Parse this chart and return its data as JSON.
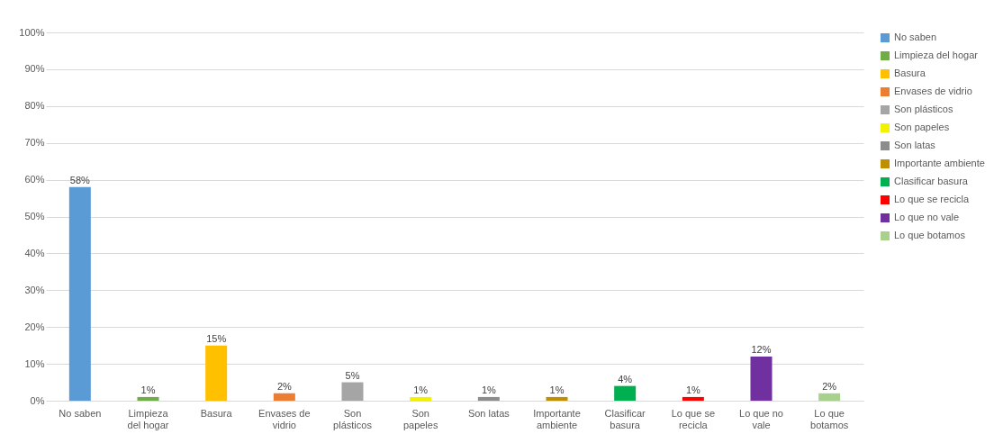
{
  "chart_data": {
    "type": "bar",
    "categories": [
      "No saben",
      "Limpieza del hogar",
      "Basura",
      "Envases de vidrio",
      "Son plásticos",
      "Son papeles",
      "Son latas",
      "Importante ambiente",
      "Clasificar basura",
      "Lo que se recicla",
      "Lo que no vale",
      "Lo que botamos"
    ],
    "series": [
      {
        "name": "No saben",
        "color": "#5b9bd5",
        "values": [
          58,
          null,
          null,
          null,
          null,
          null,
          null,
          null,
          null,
          null,
          null,
          null
        ],
        "value_labels": [
          "58%",
          null,
          null,
          null,
          null,
          null,
          null,
          null,
          null,
          null,
          null,
          null
        ]
      },
      {
        "name": "Limpieza del hogar",
        "color": "#70ad47",
        "values": [
          null,
          1,
          null,
          null,
          null,
          null,
          null,
          null,
          null,
          null,
          null,
          null
        ],
        "value_labels": [
          null,
          "1%",
          null,
          null,
          null,
          null,
          null,
          null,
          null,
          null,
          null,
          null
        ]
      },
      {
        "name": "Basura",
        "color": "#ffc000",
        "values": [
          null,
          null,
          15,
          null,
          null,
          null,
          null,
          null,
          null,
          null,
          null,
          null
        ],
        "value_labels": [
          null,
          null,
          "15%",
          null,
          null,
          null,
          null,
          null,
          null,
          null,
          null,
          null
        ]
      },
      {
        "name": "Envases de vidrio",
        "color": "#ed7d31",
        "values": [
          null,
          null,
          null,
          2,
          null,
          null,
          null,
          null,
          null,
          null,
          null,
          null
        ],
        "value_labels": [
          null,
          null,
          null,
          "2%",
          null,
          null,
          null,
          null,
          null,
          null,
          null,
          null
        ]
      },
      {
        "name": "Son plásticos",
        "color": "#a5a5a5",
        "values": [
          null,
          null,
          null,
          null,
          5,
          null,
          null,
          null,
          null,
          null,
          null,
          null
        ],
        "value_labels": [
          null,
          null,
          null,
          null,
          "5%",
          null,
          null,
          null,
          null,
          null,
          null,
          null
        ]
      },
      {
        "name": "Son papeles",
        "color": "#f2f200",
        "values": [
          null,
          null,
          null,
          null,
          null,
          1,
          null,
          null,
          null,
          null,
          null,
          null
        ],
        "value_labels": [
          null,
          null,
          null,
          null,
          null,
          "1%",
          null,
          null,
          null,
          null,
          null,
          null
        ]
      },
      {
        "name": "Son latas",
        "color": "#8c8c8c",
        "values": [
          null,
          null,
          null,
          null,
          null,
          null,
          1,
          null,
          null,
          null,
          null,
          null
        ],
        "value_labels": [
          null,
          null,
          null,
          null,
          null,
          null,
          "1%",
          null,
          null,
          null,
          null,
          null
        ]
      },
      {
        "name": "Importante ambiente",
        "color": "#bf8f00",
        "values": [
          null,
          null,
          null,
          null,
          null,
          null,
          null,
          1,
          null,
          null,
          null,
          null
        ],
        "value_labels": [
          null,
          null,
          null,
          null,
          null,
          null,
          null,
          "1%",
          null,
          null,
          null,
          null
        ]
      },
      {
        "name": "Clasificar basura",
        "color": "#00b050",
        "values": [
          null,
          null,
          null,
          null,
          null,
          null,
          null,
          null,
          4,
          null,
          null,
          null
        ],
        "value_labels": [
          null,
          null,
          null,
          null,
          null,
          null,
          null,
          null,
          "4%",
          null,
          null,
          null
        ]
      },
      {
        "name": "Lo que se recicla",
        "color": "#ff0000",
        "values": [
          null,
          null,
          null,
          null,
          null,
          null,
          null,
          null,
          null,
          1,
          null,
          null
        ],
        "value_labels": [
          null,
          null,
          null,
          null,
          null,
          null,
          null,
          null,
          null,
          "1%",
          null,
          null
        ]
      },
      {
        "name": "Lo que no vale",
        "color": "#7030a0",
        "values": [
          null,
          null,
          null,
          null,
          null,
          null,
          null,
          null,
          null,
          null,
          12,
          null
        ],
        "value_labels": [
          null,
          null,
          null,
          null,
          null,
          null,
          null,
          null,
          null,
          null,
          "12%",
          null
        ]
      },
      {
        "name": "Lo que botamos",
        "color": "#a9d18e",
        "values": [
          null,
          null,
          null,
          null,
          null,
          null,
          null,
          null,
          null,
          null,
          null,
          2
        ],
        "value_labels": [
          null,
          null,
          null,
          null,
          null,
          null,
          null,
          null,
          null,
          null,
          null,
          "2%"
        ]
      }
    ],
    "ylim": [
      0,
      100
    ],
    "yticks": [
      {
        "value": 0,
        "label": "0%"
      },
      {
        "value": 10,
        "label": "10%"
      },
      {
        "value": 20,
        "label": "20%"
      },
      {
        "value": 30,
        "label": "30%"
      },
      {
        "value": 40,
        "label": "40%"
      },
      {
        "value": 50,
        "label": "50%"
      },
      {
        "value": 60,
        "label": "60%"
      },
      {
        "value": 70,
        "label": "70%"
      },
      {
        "value": 80,
        "label": "80%"
      },
      {
        "value": 90,
        "label": "90%"
      },
      {
        "value": 100,
        "label": "100%"
      }
    ],
    "grid": "y",
    "legend": "right"
  }
}
